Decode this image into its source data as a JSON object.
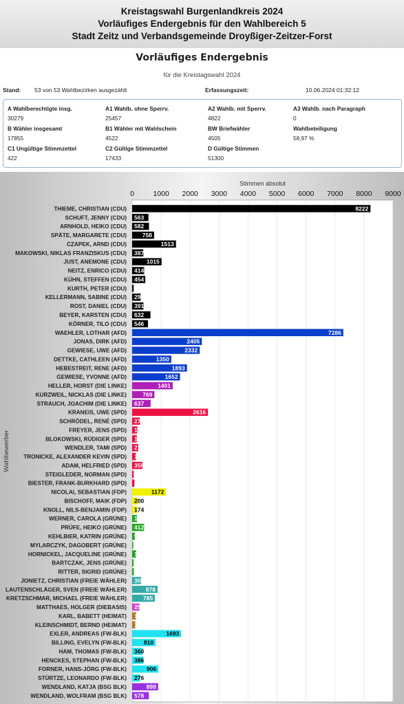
{
  "header": {
    "line1": "Kreistagswahl Burgenlandkreis 2024",
    "line2": "Vorläufiges Endergebnis für den Wahlbereich 5",
    "line3": "Stadt Zeitz und Verbandsgemeinde Droyßiger-Zeitzer-Forst"
  },
  "summary": {
    "title": "Vorläufiges Endergebnis",
    "caption": "für die Kreistagswahl 2024",
    "stand_label": "Stand:",
    "stand_value": "53 von 53 Wahlbezirken ausgezählt",
    "erfassung_label": "Erfassungszeit:",
    "erfassung_value": "10.06.2024 01:32:12",
    "stats": [
      {
        "label": "A Wahlberechtigte insg.",
        "value": "30279"
      },
      {
        "label": "A1 Wahlb. ohne Sperrv.",
        "value": "25457"
      },
      {
        "label": "A2 Wahlb. mit Sperrv.",
        "value": "4822"
      },
      {
        "label": "A3 Wahlb. nach Paragraph",
        "value": "0"
      },
      {
        "label": "B Wähler insgesamt",
        "value": "17855"
      },
      {
        "label": "B1 Wähler mit Wahlschein",
        "value": "4522"
      },
      {
        "label": "BW Briefwähler",
        "value": "4505"
      },
      {
        "label": "Wahlbeteiligung",
        "value": "58,97 %"
      },
      {
        "label": "C1 Ungültige Stimmzettel",
        "value": "422"
      },
      {
        "label": "C2 Gültige Stimmzettel",
        "value": "17433"
      },
      {
        "label": "D Gültige Stimmen",
        "value": "51300"
      }
    ]
  },
  "chart_data": {
    "type": "bar",
    "orientation": "horizontal",
    "xlabel": "Stimmen absolut",
    "ylabel": "Wahlbewerber",
    "xlim": [
      0,
      9000
    ],
    "xticks": [
      0,
      1000,
      2000,
      3000,
      4000,
      5000,
      6000,
      7000,
      8000,
      9000
    ],
    "party_colors": {
      "CDU": "#000000",
      "AFD": "#0a3ecc",
      "DIE LINKE": "#b01fb8",
      "SPD": "#ee1144",
      "FDP": "#f0f000",
      "GRÜNE": "#1ea81e",
      "FREIE WÄHLER": "#36a9a9",
      "DIEBASIS": "#d040d0",
      "HEIMAT": "#b5772a",
      "FW-BLK": "#22e2f0",
      "BSG BLK": "#9b30e0"
    },
    "categories": [
      "THIEME, CHRISTIAN (CDU)",
      "SCHUFT, JENNY (CDU)",
      "ARNHOLD, HEIKO (CDU)",
      "SPÄTE, MARGARETE (CDU)",
      "CZAPEK, ARND (CDU)",
      "MAKOWSKI, NIKLAS FRANZISKUS (CDU)",
      "JUST, ANEMONE (CDU)",
      "NEITZ, ENRICO (CDU)",
      "KÜHN, STEFFEN (CDU)",
      "KURTH, PETER (CDU)",
      "KELLERMANN, SABINE (CDU)",
      "ROST, DANIEL (CDU)",
      "BEYER, KARSTEN (CDU)",
      "KÖRNER, TILO (CDU)",
      "WAEHLER, LOTHAR (AFD)",
      "JONAS, DIRK (AFD)",
      "GEWIESE, UWE (AFD)",
      "DETTKE, CATHLEEN (AFD)",
      "HEBESTREIT, RENE (AFD)",
      "GEWIESE, YVONNE (AFD)",
      "HELLER, HORST (DIE LINKE)",
      "KURZWEIL, NICKLAS (DIE LINKE)",
      "STRAUCH, JOACHIM (DIE LINKE)",
      "KRANEIS, UWE (SPD)",
      "SCHRÖDEL, RENÉ (SPD)",
      "FREYER, JENS (SPD)",
      "BLOKOWSKI, RÜDIGER (SPD)",
      "WENDLER, TAMI (SPD)",
      "TRONICKE, ALEXANDER KEVIN (SPD)",
      "ADAM, HELFRIED (SPD)",
      "STEIGLEDER, NORMAN (SPD)",
      "BIESTER, FRANK-BURKHARD (SPD)",
      "NICOLAI, SEBASTIAN (FDP)",
      "BISCHOFF, MAIK (FDP)",
      "KNOLL, NILS-BENJAMIN (FDP)",
      "WERNER, CAROLA (GRÜNE)",
      "PRÜFE, HEIKO (GRÜNE)",
      "KEHLBIER, KATRIN (GRÜNE)",
      "MYLARCZYK, DAGOBERT (GRÜNE)",
      "HORNICKEL, JACQUELINE (GRÜNE)",
      "BARTCZAK, JENS (GRÜNE)",
      "RITTER, SIGRID (GRÜNE)",
      "JONIETZ, CHRISTIAN (FREIE WÄHLER)",
      "LAUTENSCHLÄGER, SVEN (FREIE WÄHLER)",
      "KRETZSCHMAR, MICHAEL (FREIE WÄHLER)",
      "MATTHAES, HOLGER (DIEBASIS)",
      "KARL, BABETT (HEIMAT)",
      "KLEINSCHMIDT, BERND (HEIMAT)",
      "EXLER, ANDREAS (FW-BLK)",
      "BILLING, EVELYN (FW-BLK)",
      "HAM, THOMAS (FW-BLK)",
      "HENCKES, STEPHAN (FW-BLK)",
      "FORNER, HANS-JÖRG (FW-BLK)",
      "STÜRTZE, LEONARDO (FW-BLK)",
      "WENDLAND, KATJA (BSG BLK)",
      "WENDLAND, WOLFRAM (BSG BLK)"
    ],
    "values": [
      8222,
      563,
      582,
      758,
      1513,
      387,
      1015,
      414,
      454,
      51,
      293,
      391,
      632,
      546,
      7286,
      2405,
      2332,
      1350,
      1893,
      1652,
      1401,
      769,
      637,
      2616,
      274,
      179,
      165,
      212,
      135,
      359,
      55,
      82,
      1172,
      200,
      174,
      166,
      412,
      94,
      38,
      138,
      49,
      59,
      306,
      878,
      785,
      257,
      142,
      110,
      1693,
      810,
      360,
      386,
      906,
      276,
      899,
      578
    ],
    "grid": true,
    "legend": "none"
  }
}
